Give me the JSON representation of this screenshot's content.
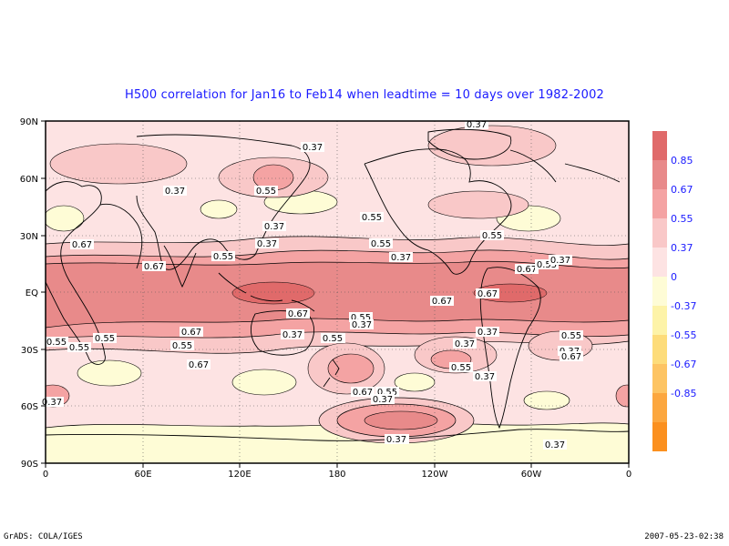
{
  "title": "H500 correlation for  Jan16 to Feb14  when leadtime =  10 days over 1982-2002",
  "axes": {
    "lat_ticks": [
      "90N",
      "60N",
      "30N",
      "EQ",
      "30S",
      "60S",
      "90S"
    ],
    "lon_ticks": [
      "0",
      "60E",
      "120E",
      "180",
      "120W",
      "60W",
      "0"
    ]
  },
  "contour_labels": [
    "0.37",
    "0.37",
    "0.55",
    "0.37",
    "0.37",
    "0.55",
    "0.67",
    "0.37",
    "0.55",
    "0.67",
    "0.55",
    "0.37",
    "0.55",
    "0.67",
    "0.67",
    "0.55",
    "0.37",
    "0.67",
    "0.67",
    "0.55",
    "0.37",
    "0.55",
    "0.37",
    "0.67",
    "0.55",
    "0.55",
    "0.55",
    "0.37",
    "0.37",
    "0.55",
    "0.37",
    "0.55",
    "0.37",
    "0.67",
    "0.55",
    "0.67",
    "0.37",
    "0.55",
    "0.67",
    "0.37",
    "0.55",
    "0.37",
    "0.37",
    "0.37"
  ],
  "legend": {
    "labels": [
      "0.85",
      "0.67",
      "0.55",
      "0.37",
      "0",
      "-0.37",
      "-0.55",
      "-0.67",
      "-0.85"
    ],
    "colors": [
      "#e06a6a",
      "#e88a8a",
      "#f4a3a3",
      "#f9c8c8",
      "#fde3e3",
      "#fefcd6",
      "#fdf3a8",
      "#fddc7a",
      "#fdc463",
      "#fca73f",
      "#fb901f"
    ]
  },
  "footer": {
    "left": "GrADS: COLA/IGES",
    "right": "2007-05-23-02:38"
  }
}
